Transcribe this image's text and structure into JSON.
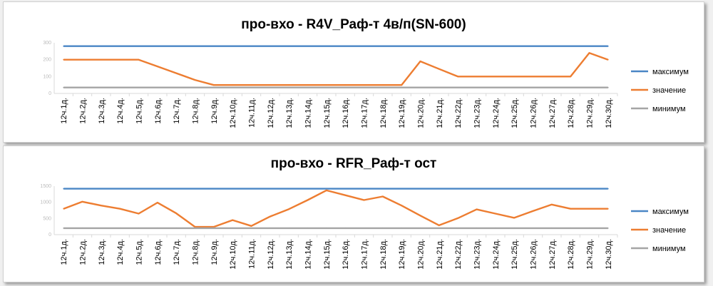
{
  "colors": {
    "max": "#4A86C5",
    "value": "#ED7D31",
    "min": "#A5A5A5"
  },
  "legend_labels": [
    "максимум",
    "значение",
    "минимум"
  ],
  "chart_data": [
    {
      "type": "line",
      "title": "про-вхо - R4V_Раф-т 4в/п(SN-600)",
      "categories": [
        "12ч.1д.",
        "12ч.2д.",
        "12ч.3д.",
        "12ч.4д.",
        "12ч.5д.",
        "12ч.6д.",
        "12ч.7д.",
        "12ч.8д.",
        "12ч.9д.",
        "12ч.10д.",
        "12ч.11д.",
        "12ч.12д.",
        "12ч.13д.",
        "12ч.14д.",
        "12ч.15д.",
        "12ч.16д.",
        "12ч.17д.",
        "12ч.18д.",
        "12ч.19д.",
        "12ч.20д.",
        "12ч.21д.",
        "12ч.22д.",
        "12ч.23д.",
        "12ч.24д.",
        "12ч.25д.",
        "12ч.26д.",
        "12ч.27д.",
        "12ч.28д.",
        "12ч.29д.",
        "12ч.30д."
      ],
      "ylim": [
        0,
        300
      ],
      "yticks": [
        "0",
        "100",
        "200",
        "300"
      ],
      "series": [
        {
          "name": "максимум",
          "values": [
            280,
            280,
            280,
            280,
            280,
            280,
            280,
            280,
            280,
            280,
            280,
            280,
            280,
            280,
            280,
            280,
            280,
            280,
            280,
            280,
            280,
            280,
            280,
            280,
            280,
            280,
            280,
            280,
            280,
            280
          ]
        },
        {
          "name": "значение",
          "values": [
            200,
            200,
            200,
            200,
            200,
            160,
            120,
            80,
            50,
            50,
            50,
            50,
            50,
            50,
            50,
            50,
            50,
            50,
            50,
            190,
            145,
            100,
            100,
            100,
            100,
            100,
            100,
            100,
            240,
            200
          ]
        },
        {
          "name": "минимум",
          "values": [
            35,
            35,
            35,
            35,
            35,
            35,
            35,
            35,
            35,
            35,
            35,
            35,
            35,
            35,
            35,
            35,
            35,
            35,
            35,
            35,
            35,
            35,
            35,
            35,
            35,
            35,
            35,
            35,
            35,
            35
          ]
        }
      ]
    },
    {
      "type": "line",
      "title": "про-вхо - RFR_Раф-т ост",
      "categories": [
        "12ч.1д.",
        "12ч.2д.",
        "12ч.3д.",
        "12ч.4д.",
        "12ч.5д.",
        "12ч.6д.",
        "12ч.7д.",
        "12ч.8д.",
        "12ч.9д.",
        "12ч.10д.",
        "12ч.11д.",
        "12ч.12д.",
        "12ч.13д.",
        "12ч.14д.",
        "12ч.15д.",
        "12ч.16д.",
        "12ч.17д.",
        "12ч.18д.",
        "12ч.19д.",
        "12ч.20д.",
        "12ч.21д.",
        "12ч.22д.",
        "12ч.23д.",
        "12ч.24д.",
        "12ч.25д.",
        "12ч.26д.",
        "12ч.27д.",
        "12ч.28д.",
        "12ч.29д.",
        "12ч.30д."
      ],
      "ylim": [
        0,
        1500
      ],
      "yticks": [
        "0",
        "500",
        "1000",
        "1500"
      ],
      "series": [
        {
          "name": "максимум",
          "values": [
            1420,
            1420,
            1420,
            1420,
            1420,
            1420,
            1420,
            1420,
            1420,
            1420,
            1420,
            1420,
            1420,
            1420,
            1420,
            1420,
            1420,
            1420,
            1420,
            1420,
            1420,
            1420,
            1420,
            1420,
            1420,
            1420,
            1420,
            1420,
            1420,
            1420
          ]
        },
        {
          "name": "значение",
          "values": [
            800,
            1020,
            900,
            800,
            650,
            990,
            660,
            240,
            240,
            450,
            270,
            560,
            790,
            1070,
            1370,
            1220,
            1070,
            1180,
            900,
            590,
            290,
            510,
            780,
            650,
            520,
            730,
            930,
            800,
            800,
            800
          ]
        },
        {
          "name": "минимум",
          "values": [
            200,
            200,
            200,
            200,
            200,
            200,
            200,
            200,
            200,
            200,
            200,
            200,
            200,
            200,
            200,
            200,
            200,
            200,
            200,
            200,
            200,
            200,
            200,
            200,
            200,
            200,
            200,
            200,
            200,
            200
          ]
        }
      ]
    }
  ]
}
